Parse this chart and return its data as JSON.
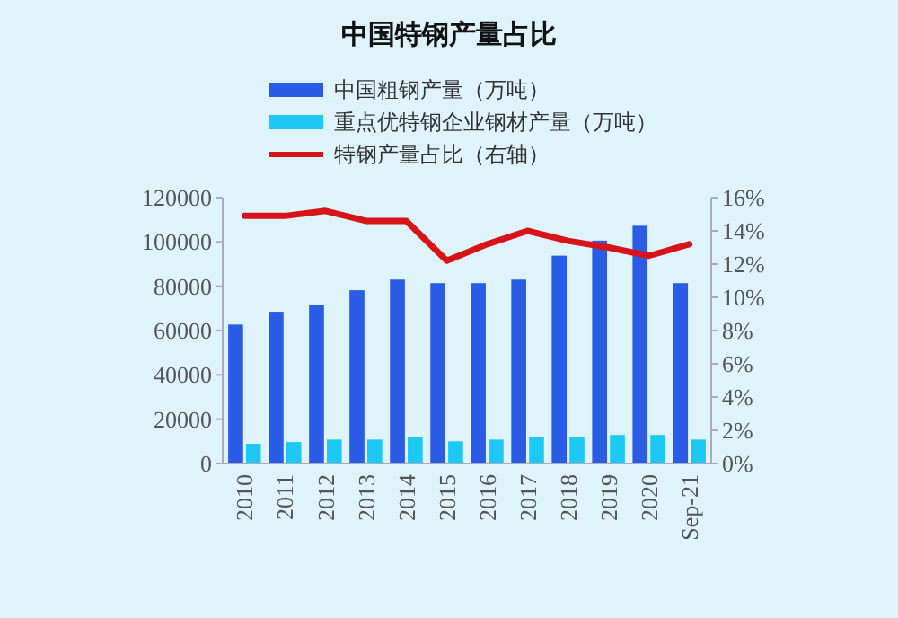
{
  "chart_data": {
    "type": "bar",
    "title": "中国特钢产量占比",
    "categories": [
      "2010",
      "2011",
      "2012",
      "2013",
      "2014",
      "2015",
      "2016",
      "2017",
      "2018",
      "2019",
      "2020",
      "Sep-21"
    ],
    "series": [
      {
        "name": "中国粗钢产量（万吨）",
        "color": "#2b5ce6",
        "values": [
          62700,
          68500,
          71700,
          78200,
          83000,
          81400,
          81400,
          83000,
          93800,
          100600,
          107300,
          81400
        ]
      },
      {
        "name": "重点优特钢企业钢材产量（万吨）",
        "color": "#1ec8f5",
        "values": [
          8900,
          9700,
          10800,
          10800,
          11900,
          10000,
          10800,
          11900,
          11900,
          12900,
          12900,
          10800
        ]
      },
      {
        "name": "特钢产量占比（右轴）",
        "type": "line",
        "axis": "y2",
        "color": "#d7141a",
        "values": [
          14.9,
          14.9,
          15.2,
          14.6,
          14.6,
          12.2,
          13.2,
          14.0,
          13.4,
          13.0,
          12.5,
          13.2
        ]
      }
    ],
    "ylim": [
      0,
      120000
    ],
    "yticks": [
      0,
      20000,
      40000,
      60000,
      80000,
      100000,
      120000
    ],
    "y2lim": [
      0,
      16
    ],
    "y2ticks": [
      {
        "value": 0,
        "label": "0%"
      },
      {
        "value": 2,
        "label": "2%"
      },
      {
        "value": 4,
        "label": "4%"
      },
      {
        "value": 6,
        "label": "6%"
      },
      {
        "value": 8,
        "label": "8%"
      },
      {
        "value": 10,
        "label": "10%"
      },
      {
        "value": 12,
        "label": "12%"
      },
      {
        "value": 14,
        "label": "14%"
      },
      {
        "value": 16,
        "label": "16%"
      }
    ],
    "grid": false,
    "legend": "top",
    "marker": "none",
    "line_style": "solid"
  }
}
